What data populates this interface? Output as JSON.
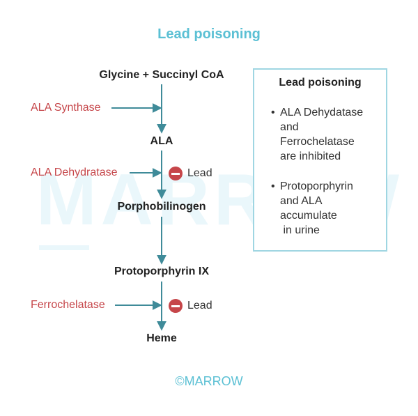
{
  "title": "Lead poisoning",
  "watermark": "MARROW",
  "pathway": {
    "nodes": [
      "Glycine + Succinyl CoA",
      "ALA",
      "Porphobilinogen",
      "Protoporphyrin IX",
      "Heme"
    ],
    "enzymes": [
      "ALA Synthase",
      "ALA Dehydratase",
      "Ferrochelatase"
    ],
    "inhibitor_label": "Lead",
    "inhibitor_icon": "inhibition-icon"
  },
  "info_box": {
    "title": "Lead poisoning",
    "bullets": [
      "ALA Dehydatase\nand\nFerrochelatase\nare inhibited",
      "Protoporphyrin\nand ALA\naccumulate\n in urine"
    ]
  },
  "footer": "©MARROW",
  "colors": {
    "accent": "#5bc0d4",
    "arrow": "#3f8b99",
    "enzyme": "#c6464a",
    "inhibitor": "#c6464a"
  }
}
